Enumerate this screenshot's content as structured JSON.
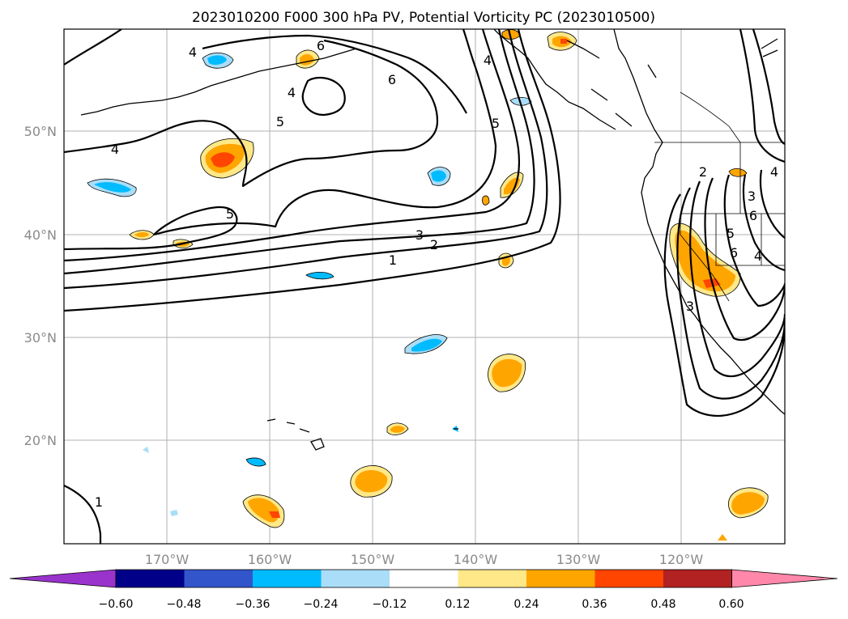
{
  "title": "2023010200 F000 300 hPa PV, Potential Vorticity PC (2023010500)",
  "lat_labels": [
    "50°N",
    "40°N",
    "30°N",
    "20°N"
  ],
  "lon_labels": [
    "170°W",
    "160°W",
    "150°W",
    "140°W",
    "130°W",
    "120°W"
  ],
  "colorbar": {
    "tick_labels": [
      "−0.60",
      "−0.48",
      "−0.36",
      "−0.24",
      "−0.12",
      "0.12",
      "0.24",
      "0.36",
      "0.48",
      "0.60"
    ],
    "colors": [
      "#9933cc",
      "#000088",
      "#3355cc",
      "#00bbff",
      "#aaddf7",
      "#ffffff",
      "#ffe888",
      "#ffa500",
      "#ff4500",
      "#b22222",
      "#ff88aa"
    ]
  },
  "contour_labels": [
    "4",
    "6",
    "6",
    "4",
    "5",
    "4",
    "5",
    "4",
    "5",
    "3",
    "2",
    "1",
    "4",
    "6",
    "2",
    "3",
    "6",
    "5",
    "4",
    "3",
    "1"
  ]
}
